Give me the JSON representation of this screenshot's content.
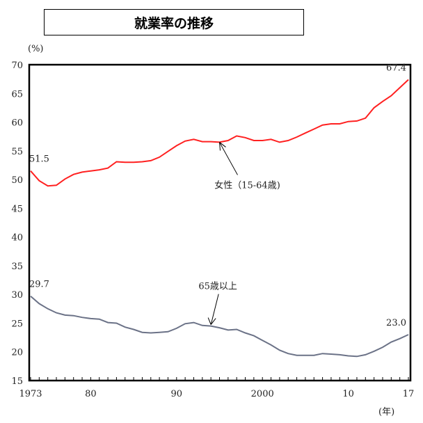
{
  "chart_data": {
    "type": "line",
    "title": "就業率の推移",
    "ylabel": "(%)",
    "xlabel": "(年)",
    "ylim": [
      15,
      70
    ],
    "xlim": [
      1973,
      2017
    ],
    "yticks": [
      15,
      20,
      25,
      30,
      35,
      40,
      45,
      50,
      55,
      60,
      65,
      70
    ],
    "xtick_labels": [
      {
        "year": 1973,
        "label": "1973"
      },
      {
        "year": 1980,
        "label": "80"
      },
      {
        "year": 1990,
        "label": "90"
      },
      {
        "year": 2000,
        "label": "2000"
      },
      {
        "year": 2010,
        "label": "10"
      },
      {
        "year": 2017,
        "label": "17"
      }
    ],
    "grid": false,
    "x": [
      1973,
      1974,
      1975,
      1976,
      1977,
      1978,
      1979,
      1980,
      1981,
      1982,
      1983,
      1984,
      1985,
      1986,
      1987,
      1988,
      1989,
      1990,
      1991,
      1992,
      1993,
      1994,
      1995,
      1996,
      1997,
      1998,
      1999,
      2000,
      2001,
      2002,
      2003,
      2004,
      2005,
      2006,
      2007,
      2008,
      2009,
      2010,
      2011,
      2012,
      2013,
      2014,
      2015,
      2016,
      2017
    ],
    "series": [
      {
        "name": "女性（15-64歳)",
        "color": "#ff2020",
        "values": [
          51.5,
          49.8,
          48.9,
          49.0,
          50.1,
          50.9,
          51.3,
          51.5,
          51.7,
          52.0,
          53.1,
          53.0,
          53.0,
          53.1,
          53.3,
          53.9,
          54.9,
          55.9,
          56.7,
          57.0,
          56.6,
          56.6,
          56.5,
          56.8,
          57.6,
          57.3,
          56.8,
          56.8,
          57.0,
          56.5,
          56.8,
          57.4,
          58.1,
          58.8,
          59.5,
          59.7,
          59.7,
          60.1,
          60.2,
          60.7,
          62.5,
          63.6,
          64.6,
          66.0,
          67.4
        ],
        "annotation_year": 1995
      },
      {
        "name": "65歳以上",
        "color": "#6b7287",
        "values": [
          29.7,
          28.4,
          27.5,
          26.8,
          26.4,
          26.3,
          26.0,
          25.8,
          25.7,
          25.1,
          25.0,
          24.3,
          23.9,
          23.4,
          23.3,
          23.4,
          23.5,
          24.1,
          24.9,
          25.1,
          24.6,
          24.5,
          24.2,
          23.8,
          23.9,
          23.3,
          22.8,
          22.0,
          21.2,
          20.3,
          19.7,
          19.4,
          19.4,
          19.4,
          19.7,
          19.6,
          19.5,
          19.3,
          19.2,
          19.5,
          20.1,
          20.8,
          21.7,
          22.3,
          23.0
        ],
        "annotation_year": 1994
      }
    ],
    "data_labels": [
      {
        "series": 0,
        "year": 1973,
        "text": "51.5"
      },
      {
        "series": 0,
        "year": 2017,
        "text": "67.4"
      },
      {
        "series": 1,
        "year": 1973,
        "text": "29.7"
      },
      {
        "series": 1,
        "year": 2017,
        "text": "23.0"
      }
    ]
  }
}
